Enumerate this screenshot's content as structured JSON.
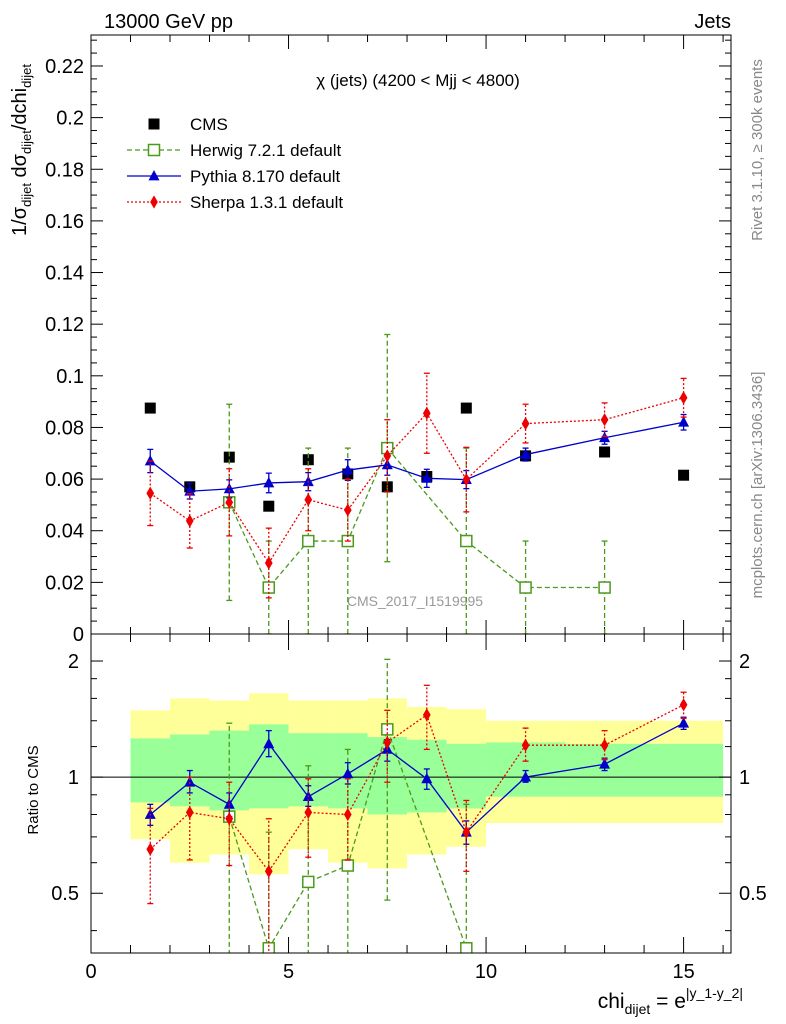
{
  "header": {
    "energy_label": "13000 GeV pp",
    "process_label": "Jets"
  },
  "side_labels": {
    "rivet": "Rivet 3.1.10, ≥ 300k events",
    "mcplots": "mcplots.cern.ch [arXiv:1306.3436]"
  },
  "chart_data": [
    {
      "type": "scatter",
      "panel": "main",
      "title": "χ (jets) (4200 < Mjj < 4800)",
      "watermark": "CMS_2017_I1519995",
      "ylabel": "1/σ_dijet dσ_dijet/dchi_dijet",
      "ylim": [
        0,
        0.232
      ],
      "xlim": [
        0,
        16.2
      ],
      "yticks": [
        0,
        0.02,
        0.04,
        0.06,
        0.08,
        0.1,
        0.12,
        0.14,
        0.16,
        0.18,
        0.2,
        0.22
      ],
      "ytick_labels": [
        "0",
        "0.02",
        "0.04",
        "0.06",
        "0.08",
        "0.1",
        "0.12",
        "0.14",
        "0.16",
        "0.18",
        "0.2",
        "0.22"
      ],
      "legend_position": "top-left",
      "series": [
        {
          "name": "CMS",
          "color": "#000000",
          "marker": "square-filled",
          "line": "none",
          "points": [
            {
              "x": 1.5,
              "y": 0.0875
            },
            {
              "x": 2.5,
              "y": 0.057
            },
            {
              "x": 3.5,
              "y": 0.0685
            },
            {
              "x": 4.5,
              "y": 0.0495
            },
            {
              "x": 5.5,
              "y": 0.0675
            },
            {
              "x": 6.5,
              "y": 0.062
            },
            {
              "x": 7.5,
              "y": 0.057
            },
            {
              "x": 8.5,
              "y": 0.061
            },
            {
              "x": 9.5,
              "y": 0.0875
            },
            {
              "x": 11,
              "y": 0.069
            },
            {
              "x": 13,
              "y": 0.0705
            },
            {
              "x": 15,
              "y": 0.0615
            }
          ]
        },
        {
          "name": "Herwig 7.2.1 default",
          "color": "#4a9a1c",
          "marker": "square-open",
          "line": "dashed",
          "points": [
            {
              "x": 3.5,
              "y": 0.051,
              "err": 0.038
            },
            {
              "x": 4.5,
              "y": 0.018,
              "err": 0.018
            },
            {
              "x": 5.5,
              "y": 0.036,
              "err": 0.036
            },
            {
              "x": 6.5,
              "y": 0.036,
              "err": 0.036
            },
            {
              "x": 7.5,
              "y": 0.072,
              "err": 0.044
            },
            {
              "x": 9.5,
              "y": 0.036,
              "err": 0.036
            },
            {
              "x": 11,
              "y": 0.018,
              "err": 0.018
            },
            {
              "x": 13,
              "y": 0.018,
              "err": 0.018
            }
          ]
        },
        {
          "name": "Pythia 8.170 default",
          "color": "#0000cc",
          "marker": "triangle-filled",
          "line": "solid",
          "points": [
            {
              "x": 1.5,
              "y": 0.067,
              "err": 0.0045
            },
            {
              "x": 2.5,
              "y": 0.0553,
              "err": 0.003
            },
            {
              "x": 3.5,
              "y": 0.0562,
              "err": 0.0035
            },
            {
              "x": 4.5,
              "y": 0.0585,
              "err": 0.0038
            },
            {
              "x": 5.5,
              "y": 0.059,
              "err": 0.0035
            },
            {
              "x": 6.5,
              "y": 0.0635,
              "err": 0.004
            },
            {
              "x": 7.5,
              "y": 0.0655,
              "err": 0.004
            },
            {
              "x": 8.5,
              "y": 0.0603,
              "err": 0.0035
            },
            {
              "x": 9.5,
              "y": 0.0598,
              "err": 0.0035
            },
            {
              "x": 11,
              "y": 0.0695,
              "err": 0.0025
            },
            {
              "x": 13,
              "y": 0.076,
              "err": 0.0025
            },
            {
              "x": 15,
              "y": 0.082,
              "err": 0.003
            }
          ]
        },
        {
          "name": "Sherpa 1.3.1 default",
          "color": "#ee0000",
          "marker": "diamond-filled",
          "line": "dotted",
          "points": [
            {
              "x": 1.5,
              "y": 0.0545,
              "err": 0.0125
            },
            {
              "x": 2.5,
              "y": 0.0438,
              "err": 0.0105
            },
            {
              "x": 3.5,
              "y": 0.051,
              "err": 0.013
            },
            {
              "x": 4.5,
              "y": 0.0275,
              "err": 0.0135
            },
            {
              "x": 5.5,
              "y": 0.052,
              "err": 0.012
            },
            {
              "x": 6.5,
              "y": 0.048,
              "err": 0.012
            },
            {
              "x": 7.5,
              "y": 0.069,
              "err": 0.014
            },
            {
              "x": 8.5,
              "y": 0.0855,
              "err": 0.0155
            },
            {
              "x": 9.5,
              "y": 0.0598,
              "err": 0.0125
            },
            {
              "x": 11,
              "y": 0.0815,
              "err": 0.0075
            },
            {
              "x": 13,
              "y": 0.083,
              "err": 0.0065
            },
            {
              "x": 15,
              "y": 0.0915,
              "err": 0.0075
            }
          ]
        }
      ]
    },
    {
      "type": "scatter",
      "panel": "ratio",
      "ylabel": "Ratio to CMS",
      "xlabel": "chi_dijet = e^|y_1-y_2|",
      "ylim": [
        0.35,
        2.35
      ],
      "xlim": [
        0,
        16.2
      ],
      "log_y": true,
      "yticks": [
        0.5,
        1,
        2
      ],
      "ytick_labels": [
        "0.5",
        "1",
        "2"
      ],
      "xticks": [
        0,
        5,
        10,
        15
      ],
      "xtick_labels": [
        "0",
        "5",
        "10",
        "15"
      ],
      "reference_line": 1,
      "uncertainty_bands": [
        {
          "x0": 1,
          "x1": 2,
          "inner": [
            0.86,
            1.26
          ],
          "outer": [
            0.69,
            1.49
          ]
        },
        {
          "x0": 2,
          "x1": 3,
          "inner": [
            0.84,
            1.29
          ],
          "outer": [
            0.6,
            1.6
          ]
        },
        {
          "x0": 3,
          "x1": 4,
          "inner": [
            0.82,
            1.32
          ],
          "outer": [
            0.63,
            1.58
          ]
        },
        {
          "x0": 4,
          "x1": 5,
          "inner": [
            0.83,
            1.37
          ],
          "outer": [
            0.56,
            1.65
          ]
        },
        {
          "x0": 5,
          "x1": 6,
          "inner": [
            0.84,
            1.3
          ],
          "outer": [
            0.65,
            1.58
          ]
        },
        {
          "x0": 6,
          "x1": 7,
          "inner": [
            0.83,
            1.3
          ],
          "outer": [
            0.6,
            1.58
          ]
        },
        {
          "x0": 7,
          "x1": 8,
          "inner": [
            0.8,
            1.27
          ],
          "outer": [
            0.58,
            1.6
          ]
        },
        {
          "x0": 8,
          "x1": 9,
          "inner": [
            0.81,
            1.25
          ],
          "outer": [
            0.63,
            1.52
          ]
        },
        {
          "x0": 9,
          "x1": 10,
          "inner": [
            0.83,
            1.22
          ],
          "outer": [
            0.66,
            1.5
          ]
        },
        {
          "x0": 10,
          "x1": 12,
          "inner": [
            0.89,
            1.23
          ],
          "outer": [
            0.76,
            1.4
          ]
        },
        {
          "x0": 12,
          "x1": 16,
          "inner": [
            0.89,
            1.22
          ],
          "outer": [
            0.76,
            1.4
          ]
        }
      ],
      "band_colors": {
        "inner": "#99ff99",
        "outer": "#ffff99"
      },
      "series": [
        {
          "name": "Herwig 7.2.1 default",
          "color": "#4a9a1c",
          "marker": "square-open",
          "line": "dashed",
          "points": [
            {
              "x": 3.5,
              "y": 0.79,
              "lo": 0.3,
              "hi": 1.38
            },
            {
              "x": 4.5,
              "y": 0.36,
              "lo": 0.3,
              "hi": 0.72
            },
            {
              "x": 5.5,
              "y": 0.535,
              "lo": 0.3,
              "hi": 1.07
            },
            {
              "x": 6.5,
              "y": 0.59,
              "lo": 0.3,
              "hi": 1.18
            },
            {
              "x": 7.5,
              "y": 1.33,
              "lo": 0.48,
              "hi": 2.02
            },
            {
              "x": 9.5,
              "y": 0.36,
              "lo": 0.3,
              "hi": 0.85
            }
          ]
        },
        {
          "name": "Pythia 8.170 default",
          "color": "#0000cc",
          "marker": "triangle-filled",
          "line": "solid",
          "points": [
            {
              "x": 1.5,
              "y": 0.8,
              "lo": 0.75,
              "hi": 0.85
            },
            {
              "x": 2.5,
              "y": 0.97,
              "lo": 0.91,
              "hi": 1.04
            },
            {
              "x": 3.5,
              "y": 0.85,
              "lo": 0.79,
              "hi": 0.91
            },
            {
              "x": 4.5,
              "y": 1.22,
              "lo": 1.13,
              "hi": 1.32
            },
            {
              "x": 5.5,
              "y": 0.89,
              "lo": 0.84,
              "hi": 0.95
            },
            {
              "x": 6.5,
              "y": 1.02,
              "lo": 0.96,
              "hi": 1.09
            },
            {
              "x": 7.5,
              "y": 1.18,
              "lo": 1.1,
              "hi": 1.25
            },
            {
              "x": 8.5,
              "y": 0.99,
              "lo": 0.93,
              "hi": 1.05
            },
            {
              "x": 9.5,
              "y": 0.72,
              "lo": 0.67,
              "hi": 0.77
            },
            {
              "x": 11,
              "y": 1.0,
              "lo": 0.97,
              "hi": 1.04
            },
            {
              "x": 13,
              "y": 1.08,
              "lo": 1.04,
              "hi": 1.12
            },
            {
              "x": 15,
              "y": 1.38,
              "lo": 1.33,
              "hi": 1.43
            }
          ]
        },
        {
          "name": "Sherpa 1.3.1 default",
          "color": "#ee0000",
          "marker": "diamond-filled",
          "line": "dotted",
          "points": [
            {
              "x": 1.5,
              "y": 0.65,
              "lo": 0.47,
              "hi": 0.83
            },
            {
              "x": 2.5,
              "y": 0.81,
              "lo": 0.61,
              "hi": 1.0
            },
            {
              "x": 3.5,
              "y": 0.78,
              "lo": 0.59,
              "hi": 0.97
            },
            {
              "x": 4.5,
              "y": 0.57,
              "lo": 0.3,
              "hi": 0.78
            },
            {
              "x": 5.5,
              "y": 0.81,
              "lo": 0.62,
              "hi": 0.99
            },
            {
              "x": 6.5,
              "y": 0.8,
              "lo": 0.61,
              "hi": 0.99
            },
            {
              "x": 7.5,
              "y": 1.23,
              "lo": 0.97,
              "hi": 1.49
            },
            {
              "x": 8.5,
              "y": 1.45,
              "lo": 1.18,
              "hi": 1.73
            },
            {
              "x": 9.5,
              "y": 0.72,
              "lo": 0.57,
              "hi": 0.87
            },
            {
              "x": 11,
              "y": 1.21,
              "lo": 1.1,
              "hi": 1.34
            },
            {
              "x": 13,
              "y": 1.21,
              "lo": 1.11,
              "hi": 1.32
            },
            {
              "x": 15,
              "y": 1.54,
              "lo": 1.42,
              "hi": 1.66
            }
          ]
        }
      ]
    }
  ]
}
